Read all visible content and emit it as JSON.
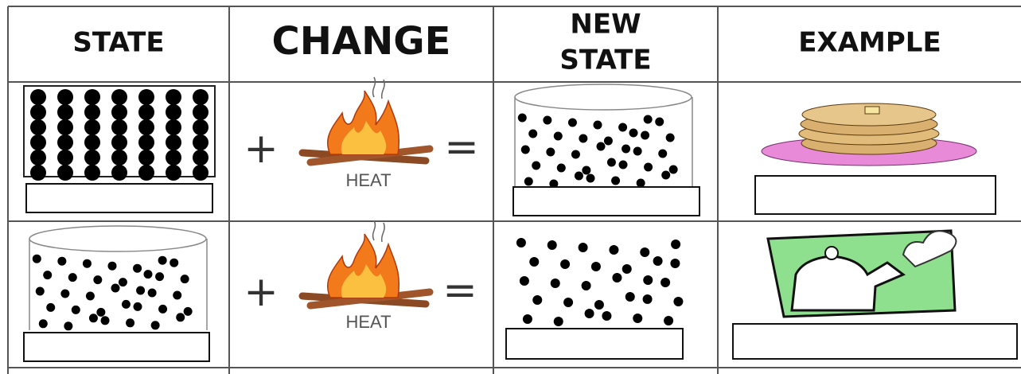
{
  "header": {
    "state": "STATE",
    "change": "CHANGE",
    "new_state": [
      "NEW",
      "STATE"
    ],
    "example": "EXAMPLE"
  },
  "rows": [
    {
      "plus": "+",
      "heat": "HEAT",
      "equals": "="
    },
    {
      "plus": "+",
      "heat": "HEAT",
      "equals": "="
    }
  ]
}
